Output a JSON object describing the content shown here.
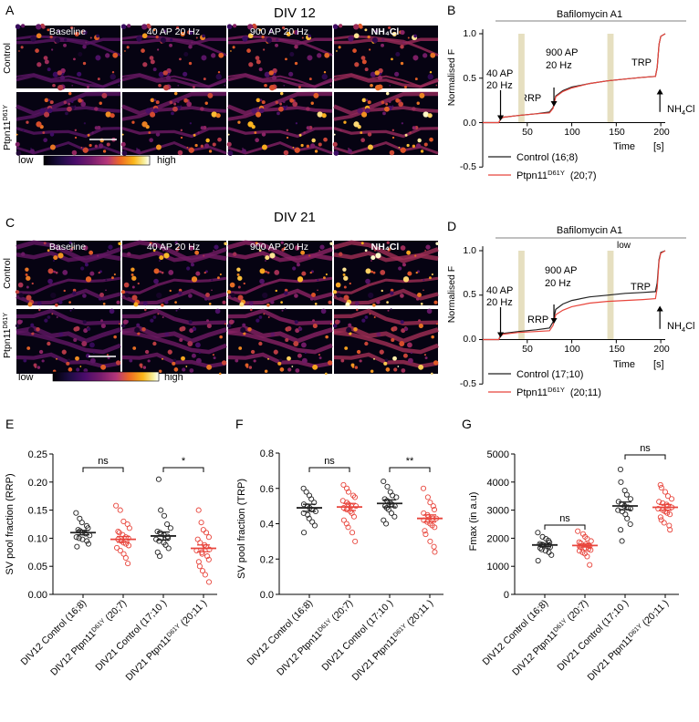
{
  "colors": {
    "control": "#222222",
    "mutant": "#e8453c",
    "gray": "#9a9a9a",
    "shade": "#e6dfc0"
  },
  "panelA": {
    "letter": "A",
    "title": "DIV 12",
    "columns": [
      "Baseline",
      "40 AP 20 Hz",
      "900 AP 20 Hz",
      "NH₄Cl"
    ],
    "rows": [
      "Control",
      "Ptpn11",
      "D61Y"
    ],
    "colorbar_low": "low",
    "colorbar_high": "high"
  },
  "panelB": {
    "letter": "B",
    "header": "Bafilomycin A1",
    "ylabel": "Normalised F",
    "xlabel": "Time",
    "xunit": "[s]",
    "yticks": [
      "1.0",
      "0.5",
      "0.0",
      "-0.5"
    ],
    "xticks": [
      "50",
      "100",
      "150",
      "200"
    ],
    "ann_40ap_1": "40 AP",
    "ann_40ap_2": "20 Hz",
    "ann_900ap_1": "900 AP",
    "ann_900ap_2": "20 Hz",
    "ann_rrp": "RRP",
    "ann_trp": "TRP",
    "ann_nh4": "NH",
    "ann_nh4_sub": "4",
    "ann_nh4_tail": "Cl",
    "legend_control": "Control (16;8)",
    "legend_mutant_a": "Ptpn11",
    "legend_mutant_sup": "D61Y",
    "legend_mutant_b": "(20;7)"
  },
  "panelC": {
    "letter": "C",
    "title": "DIV 21",
    "columns": [
      "Baseline",
      "40 AP 20 Hz",
      "900 AP 20 Hz",
      "NH₄Cl"
    ],
    "rows": [
      "Control",
      "Ptpn11",
      "D61Y"
    ],
    "colorbar_low": "low",
    "colorbar_high": "high"
  },
  "panelD": {
    "letter": "D",
    "header": "Bafilomycin A1",
    "ylabel": "Normalised F",
    "xlabel": "Time",
    "xunit": "[s]",
    "yticks": [
      "1.0",
      "0.5",
      "0.0",
      "-0.5"
    ],
    "xticks": [
      "50",
      "100",
      "150",
      "200"
    ],
    "ann_40ap_1": "40 AP",
    "ann_40ap_2": "20 Hz",
    "ann_900ap_1": "900 AP",
    "ann_900ap_2": "20 Hz",
    "ann_rrp": "RRP",
    "ann_trp": "TRP",
    "ann_low": "low",
    "ann_nh4": "NH",
    "ann_nh4_sub": "4",
    "ann_nh4_tail": "Cl",
    "legend_control": "Control (17;10)",
    "legend_mutant_a": "Ptpn11",
    "legend_mutant_sup": "D61Y",
    "legend_mutant_b": "(20;11)"
  },
  "panelE": {
    "letter": "E",
    "ylabel": "SV pool fraction (RRP)",
    "yticks": [
      "0.00",
      "0.05",
      "0.10",
      "0.15",
      "0.20",
      "0.25"
    ],
    "sig_left": "ns",
    "sig_right": "*",
    "xlabels": [
      {
        "pre": "DIV12 Control (16;8)",
        "sup": "",
        "post": ""
      },
      {
        "pre": "DIV12 Ptpn11",
        "sup": "D61Y",
        "post": " (20;7)"
      },
      {
        "pre": "DIV21 Control (17;10 )",
        "sup": "",
        "post": ""
      },
      {
        "pre": "DIV21 Ptpn11",
        "sup": "D61Y",
        "post": " (20;11 )"
      }
    ]
  },
  "panelF": {
    "letter": "F",
    "ylabel": "SV pool fraction (TRP)",
    "yticks": [
      "0.0",
      "0.2",
      "0.4",
      "0.6",
      "0.8"
    ],
    "sig_left": "ns",
    "sig_right": "**",
    "xlabels": [
      {
        "pre": "DIV12 Control (16;8)",
        "sup": "",
        "post": ""
      },
      {
        "pre": "DIV12 Ptpn11",
        "sup": "D61Y",
        "post": " (20;7)"
      },
      {
        "pre": "DIV21 Control (17;10 )",
        "sup": "",
        "post": ""
      },
      {
        "pre": "DIV21 Ptpn11",
        "sup": "D61Y",
        "post": " (20;11 )"
      }
    ]
  },
  "panelG": {
    "letter": "G",
    "ylabel": "Fmax (in a.u)",
    "yticks": [
      "0",
      "1000",
      "2000",
      "3000",
      "4000",
      "5000"
    ],
    "sig_left": "ns",
    "sig_right": "ns",
    "xlabels": [
      {
        "pre": "DIV12 Control (16;8)",
        "sup": "",
        "post": ""
      },
      {
        "pre": "DIV12 Ptpn11",
        "sup": "D61Y",
        "post": " (20;7)"
      },
      {
        "pre": "DIV21 Control (17;10 )",
        "sup": "",
        "post": ""
      },
      {
        "pre": "DIV21 Ptpn11",
        "sup": "D61Y",
        "post": " (20;11 )"
      }
    ]
  },
  "chart_data": [
    {
      "id": "B",
      "type": "line",
      "title": "Bafilomycin A1",
      "xlabel": "Time [s]",
      "ylabel": "Normalised F",
      "xlim": [
        0,
        205
      ],
      "ylim": [
        -0.5,
        1.0
      ],
      "shaded_windows": [
        [
          40,
          47
        ],
        [
          140,
          147
        ]
      ],
      "series": [
        {
          "name": "Control (16;8)",
          "x": [
            0,
            18,
            20,
            23,
            40,
            60,
            75,
            79,
            82,
            90,
            100,
            120,
            140,
            160,
            180,
            194,
            196,
            198,
            200,
            205
          ],
          "y": [
            0,
            0,
            0.04,
            0.06,
            0.08,
            0.1,
            0.12,
            0.17,
            0.3,
            0.36,
            0.4,
            0.44,
            0.47,
            0.49,
            0.51,
            0.52,
            0.62,
            0.88,
            0.97,
            1.0
          ]
        },
        {
          "name": "Ptpn11 D61Y (20;7)",
          "x": [
            0,
            18,
            20,
            23,
            40,
            60,
            75,
            79,
            82,
            90,
            100,
            120,
            140,
            160,
            180,
            194,
            196,
            198,
            200,
            205
          ],
          "y": [
            0,
            0,
            0.04,
            0.06,
            0.08,
            0.1,
            0.11,
            0.16,
            0.29,
            0.35,
            0.39,
            0.44,
            0.47,
            0.49,
            0.51,
            0.52,
            0.62,
            0.88,
            0.97,
            1.0
          ]
        }
      ]
    },
    {
      "id": "D",
      "type": "line",
      "title": "Bafilomycin A1",
      "xlabel": "Time [s]",
      "ylabel": "Normalised F",
      "xlim": [
        0,
        205
      ],
      "ylim": [
        -0.5,
        1.0
      ],
      "shaded_windows": [
        [
          40,
          47
        ],
        [
          140,
          147
        ]
      ],
      "series": [
        {
          "name": "Control (17;10)",
          "x": [
            0,
            18,
            20,
            23,
            40,
            60,
            75,
            79,
            82,
            90,
            100,
            120,
            140,
            160,
            180,
            194,
            196,
            198,
            200,
            205
          ],
          "y": [
            0,
            0,
            0.05,
            0.07,
            0.09,
            0.11,
            0.13,
            0.2,
            0.34,
            0.4,
            0.44,
            0.48,
            0.5,
            0.52,
            0.53,
            0.54,
            0.64,
            0.9,
            0.98,
            1.0
          ]
        },
        {
          "name": "Ptpn11 D61Y (20;11)",
          "x": [
            0,
            18,
            20,
            23,
            40,
            60,
            75,
            79,
            82,
            90,
            100,
            120,
            140,
            160,
            180,
            194,
            196,
            198,
            200,
            205
          ],
          "y": [
            0,
            0,
            0.04,
            0.06,
            0.08,
            0.09,
            0.1,
            0.16,
            0.28,
            0.33,
            0.37,
            0.41,
            0.43,
            0.44,
            0.45,
            0.46,
            0.58,
            0.88,
            0.97,
            1.0
          ]
        }
      ]
    },
    {
      "id": "E",
      "type": "scatter",
      "ylabel": "SV pool fraction (RRP)",
      "ylim": [
        0,
        0.25
      ],
      "groups": [
        {
          "name": "DIV12 Control (16;8)",
          "mean": 0.11,
          "sem": 0.004,
          "values": [
            0.145,
            0.135,
            0.128,
            0.122,
            0.118,
            0.115,
            0.113,
            0.11,
            0.108,
            0.105,
            0.102,
            0.1,
            0.098,
            0.095,
            0.09,
            0.085
          ]
        },
        {
          "name": "DIV12 Ptpn11 D61Y (20;7)",
          "mean": 0.098,
          "sem": 0.005,
          "values": [
            0.158,
            0.15,
            0.13,
            0.125,
            0.118,
            0.112,
            0.11,
            0.106,
            0.102,
            0.1,
            0.098,
            0.095,
            0.092,
            0.09,
            0.087,
            0.083,
            0.078,
            0.072,
            0.065,
            0.055
          ]
        },
        {
          "name": "DIV21 Control (17;10)",
          "mean": 0.104,
          "sem": 0.007,
          "values": [
            0.205,
            0.15,
            0.14,
            0.125,
            0.118,
            0.112,
            0.11,
            0.106,
            0.103,
            0.1,
            0.098,
            0.095,
            0.092,
            0.088,
            0.082,
            0.075,
            0.068
          ]
        },
        {
          "name": "DIV21 Ptpn11 D61Y (20;11)",
          "mean": 0.082,
          "sem": 0.006,
          "values": [
            0.15,
            0.128,
            0.115,
            0.11,
            0.102,
            0.098,
            0.092,
            0.088,
            0.085,
            0.08,
            0.078,
            0.075,
            0.072,
            0.068,
            0.062,
            0.058,
            0.05,
            0.042,
            0.035,
            0.022
          ]
        }
      ]
    },
    {
      "id": "F",
      "type": "scatter",
      "ylabel": "SV pool fraction (TRP)",
      "ylim": [
        0,
        0.8
      ],
      "groups": [
        {
          "name": "DIV12 Control (16;8)",
          "mean": 0.49,
          "sem": 0.02,
          "values": [
            0.6,
            0.58,
            0.56,
            0.54,
            0.52,
            0.51,
            0.5,
            0.49,
            0.48,
            0.47,
            0.46,
            0.45,
            0.43,
            0.41,
            0.39,
            0.35
          ]
        },
        {
          "name": "DIV12 Ptpn11 D61Y (20;7)",
          "mean": 0.495,
          "sem": 0.02,
          "values": [
            0.62,
            0.6,
            0.58,
            0.56,
            0.55,
            0.53,
            0.52,
            0.51,
            0.5,
            0.5,
            0.49,
            0.48,
            0.47,
            0.46,
            0.44,
            0.42,
            0.4,
            0.38,
            0.35,
            0.3
          ]
        },
        {
          "name": "DIV21 Control (17;10)",
          "mean": 0.515,
          "sem": 0.02,
          "values": [
            0.64,
            0.61,
            0.58,
            0.56,
            0.55,
            0.54,
            0.53,
            0.52,
            0.51,
            0.5,
            0.5,
            0.49,
            0.48,
            0.46,
            0.44,
            0.42,
            0.4
          ]
        },
        {
          "name": "DIV21 Ptpn11 D61Y (20;11)",
          "mean": 0.43,
          "sem": 0.02,
          "values": [
            0.6,
            0.55,
            0.52,
            0.5,
            0.48,
            0.46,
            0.45,
            0.44,
            0.43,
            0.43,
            0.42,
            0.41,
            0.4,
            0.39,
            0.38,
            0.36,
            0.34,
            0.3,
            0.27,
            0.24
          ]
        }
      ]
    },
    {
      "id": "G",
      "type": "scatter",
      "ylabel": "Fmax (in a.u)",
      "ylim": [
        0,
        5000
      ],
      "groups": [
        {
          "name": "DIV12 Control (16;8)",
          "mean": 1760,
          "sem": 60,
          "values": [
            2200,
            2050,
            1980,
            1920,
            1850,
            1800,
            1770,
            1740,
            1710,
            1680,
            1650,
            1600,
            1550,
            1500,
            1400,
            1200
          ]
        },
        {
          "name": "DIV12 Ptpn11 D61Y (20;7)",
          "mean": 1740,
          "sem": 55,
          "values": [
            2250,
            2150,
            2050,
            1980,
            1900,
            1860,
            1820,
            1780,
            1750,
            1720,
            1700,
            1680,
            1650,
            1620,
            1580,
            1550,
            1500,
            1450,
            1350,
            1050
          ]
        },
        {
          "name": "DIV21 Control (17;10)",
          "mean": 3150,
          "sem": 140,
          "values": [
            4450,
            4000,
            3700,
            3550,
            3400,
            3300,
            3200,
            3150,
            3100,
            3050,
            3000,
            2950,
            2850,
            2700,
            2500,
            2300,
            1900
          ]
        },
        {
          "name": "DIV21 Ptpn11 D61Y (20;11)",
          "mean": 3100,
          "sem": 100,
          "values": [
            3900,
            3800,
            3650,
            3500,
            3400,
            3300,
            3250,
            3200,
            3150,
            3100,
            3050,
            3000,
            2950,
            2900,
            2850,
            2750,
            2650,
            2550,
            2450,
            2300
          ]
        }
      ]
    }
  ]
}
